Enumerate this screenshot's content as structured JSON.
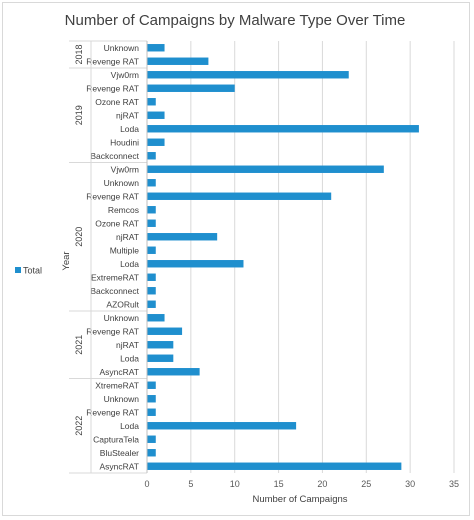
{
  "chart_data": {
    "type": "bar",
    "orientation": "horizontal",
    "title": "Number of Campaigns by Malware Type Over Time",
    "xlabel": "Number of Campaigns",
    "ylabel": "Year",
    "xlim": [
      0,
      35
    ],
    "xticks": [
      "0",
      "5",
      "10",
      "15",
      "20",
      "25",
      "30",
      "35"
    ],
    "grid": "vertical",
    "legend_position": "left",
    "series": [
      {
        "name": "Total",
        "color": "#1f8fce"
      }
    ],
    "groups": [
      {
        "year": "2018",
        "items": [
          {
            "label": "Unknown",
            "value": 2
          },
          {
            "label": "Revenge RAT",
            "value": 7
          }
        ]
      },
      {
        "year": "2019",
        "items": [
          {
            "label": "Vjw0rm",
            "value": 23
          },
          {
            "label": "Revenge RAT",
            "value": 10
          },
          {
            "label": "Ozone RAT",
            "value": 1
          },
          {
            "label": "njRAT",
            "value": 2
          },
          {
            "label": "Loda",
            "value": 31
          },
          {
            "label": "Houdini",
            "value": 2
          },
          {
            "label": "Backconnect",
            "value": 1
          }
        ]
      },
      {
        "year": "2020",
        "items": [
          {
            "label": "Vjw0rm",
            "value": 27
          },
          {
            "label": "Unknown",
            "value": 1
          },
          {
            "label": "Revenge RAT",
            "value": 21
          },
          {
            "label": "Remcos",
            "value": 1
          },
          {
            "label": "Ozone RAT",
            "value": 1
          },
          {
            "label": "njRAT",
            "value": 8
          },
          {
            "label": "Multiple",
            "value": 1
          },
          {
            "label": "Loda",
            "value": 11
          },
          {
            "label": "ExtremeRAT",
            "value": 1
          },
          {
            "label": "Backconnect",
            "value": 1
          },
          {
            "label": "AZORult",
            "value": 1
          }
        ]
      },
      {
        "year": "2021",
        "items": [
          {
            "label": "Unknown",
            "value": 2
          },
          {
            "label": "Revenge RAT",
            "value": 4
          },
          {
            "label": "njRAT",
            "value": 3
          },
          {
            "label": "Loda",
            "value": 3
          },
          {
            "label": "AsyncRAT",
            "value": 6
          }
        ]
      },
      {
        "year": "2022",
        "items": [
          {
            "label": "XtremeRAT",
            "value": 1
          },
          {
            "label": "Unknown",
            "value": 1
          },
          {
            "label": "Revenge RAT",
            "value": 1
          },
          {
            "label": "Loda",
            "value": 17
          },
          {
            "label": "CapturaTela",
            "value": 1
          },
          {
            "label": "BluStealer",
            "value": 1
          },
          {
            "label": "AsyncRAT",
            "value": 29
          }
        ]
      }
    ]
  }
}
